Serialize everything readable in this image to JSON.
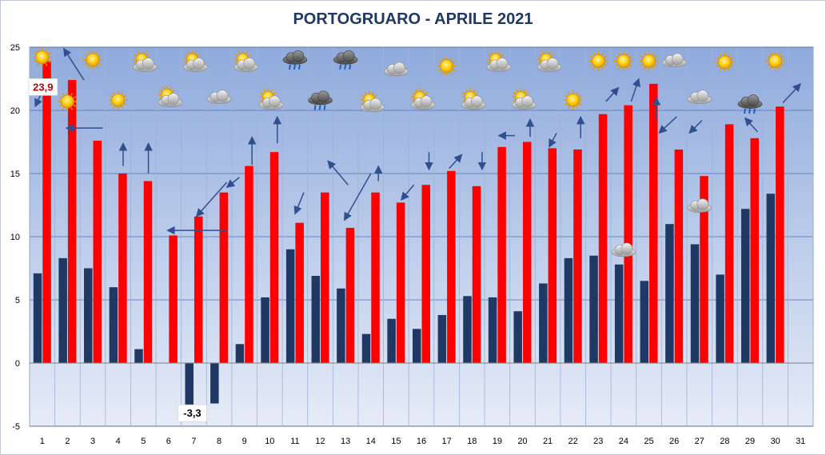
{
  "title": "PORTOGRUARO - APRILE 2021",
  "chart_data": {
    "type": "bar",
    "title": "PORTOGRUARO - APRILE 2021",
    "categories": [
      "1",
      "2",
      "3",
      "4",
      "5",
      "6",
      "7",
      "8",
      "9",
      "10",
      "11",
      "12",
      "13",
      "14",
      "15",
      "16",
      "17",
      "18",
      "19",
      "20",
      "21",
      "22",
      "23",
      "24",
      "25",
      "26",
      "27",
      "28",
      "29",
      "30",
      "31"
    ],
    "ylim": [
      -5,
      25
    ],
    "yticks": [
      25,
      20,
      15,
      10,
      5,
      0,
      -5
    ],
    "grid": true,
    "series": [
      {
        "color": "#1f3864",
        "values": [
          7.1,
          8.3,
          7.5,
          6.0,
          1.1,
          null,
          -3.3,
          -3.2,
          1.5,
          5.2,
          9.0,
          6.9,
          5.9,
          2.3,
          3.5,
          2.7,
          3.8,
          5.3,
          5.2,
          4.1,
          6.3,
          8.3,
          8.5,
          7.8,
          6.5,
          11.0,
          9.4,
          7.0,
          12.2,
          13.4,
          null
        ]
      },
      {
        "color": "#ff0000",
        "values": [
          23.9,
          22.4,
          17.6,
          15.0,
          14.4,
          10.1,
          11.6,
          13.5,
          15.6,
          16.7,
          11.1,
          13.5,
          10.7,
          13.5,
          12.7,
          14.1,
          15.2,
          14.0,
          17.1,
          17.5,
          17.0,
          16.9,
          19.7,
          20.4,
          22.1,
          16.9,
          14.8,
          18.9,
          17.8,
          20.3,
          null
        ]
      }
    ],
    "annotations": [
      {
        "day": "1",
        "series": 1,
        "text": "23,9",
        "color": "#c00000"
      },
      {
        "day": "7",
        "series": 0,
        "text": "-3,3",
        "color": "#000000"
      }
    ],
    "weather_icons": [
      {
        "day": "1",
        "icon": "sun",
        "y": 24.2
      },
      {
        "day": "2",
        "icon": "sun",
        "y": 20.7
      },
      {
        "day": "3",
        "icon": "sun",
        "y": 24.0
      },
      {
        "day": "4",
        "icon": "sun",
        "y": 20.8
      },
      {
        "day": "5",
        "icon": "sun-cloud",
        "y": 23.8
      },
      {
        "day": "6",
        "icon": "sun-cloud",
        "y": 21.0
      },
      {
        "day": "7",
        "icon": "sun-cloud",
        "y": 23.8
      },
      {
        "day": "8",
        "icon": "cloud",
        "y": 21.0
      },
      {
        "day": "9",
        "icon": "sun-cloud",
        "y": 23.8
      },
      {
        "day": "10",
        "icon": "sun-cloud",
        "y": 20.8
      },
      {
        "day": "11",
        "icon": "rain",
        "y": 24.0
      },
      {
        "day": "12",
        "icon": "rain",
        "y": 20.8
      },
      {
        "day": "13",
        "icon": "rain",
        "y": 24.0
      },
      {
        "day": "14",
        "icon": "sun-cloud",
        "y": 20.6
      },
      {
        "day": "15",
        "icon": "cloud",
        "y": 23.2
      },
      {
        "day": "16",
        "icon": "sun-cloud",
        "y": 20.8
      },
      {
        "day": "17",
        "icon": "sun",
        "y": 23.5
      },
      {
        "day": "18",
        "icon": "sun-cloud",
        "y": 20.8
      },
      {
        "day": "19",
        "icon": "sun-cloud",
        "y": 23.8
      },
      {
        "day": "20",
        "icon": "sun-cloud",
        "y": 20.8
      },
      {
        "day": "21",
        "icon": "sun-cloud",
        "y": 23.8
      },
      {
        "day": "22",
        "icon": "sun",
        "y": 20.8
      },
      {
        "day": "23",
        "icon": "sun",
        "y": 23.9
      },
      {
        "day": "24",
        "icon": "sun",
        "y": 23.9
      },
      {
        "day": "24",
        "icon": "cloud",
        "y": 8.9
      },
      {
        "day": "25",
        "icon": "sun",
        "y": 23.9
      },
      {
        "day": "26",
        "icon": "cloud",
        "y": 23.9
      },
      {
        "day": "27",
        "icon": "cloud",
        "y": 21.0
      },
      {
        "day": "27",
        "icon": "cloud",
        "y": 12.4
      },
      {
        "day": "28",
        "icon": "sun",
        "y": 23.8
      },
      {
        "day": "29",
        "icon": "rain",
        "y": 20.5
      },
      {
        "day": "30",
        "icon": "sun",
        "y": 23.9
      }
    ],
    "arrows": [
      {
        "from": [
          1.0,
          21.5
        ],
        "to": [
          0.72,
          20.3
        ]
      },
      {
        "from": [
          2.65,
          22.4
        ],
        "to": [
          1.85,
          24.9
        ]
      },
      {
        "from": [
          3.4,
          18.6
        ],
        "to": [
          1.95,
          18.6
        ]
      },
      {
        "from": [
          4.2,
          15.6
        ],
        "to": [
          4.2,
          17.4
        ]
      },
      {
        "from": [
          5.2,
          15.0
        ],
        "to": [
          5.2,
          17.4
        ]
      },
      {
        "from": [
          8.3,
          10.5
        ],
        "to": [
          5.95,
          10.5
        ]
      },
      {
        "from": [
          8.3,
          14.3
        ],
        "to": [
          7.1,
          11.6
        ]
      },
      {
        "from": [
          8.8,
          14.7
        ],
        "to": [
          8.3,
          13.9
        ]
      },
      {
        "from": [
          9.3,
          15.7
        ],
        "to": [
          9.3,
          17.9
        ]
      },
      {
        "from": [
          10.3,
          17.4
        ],
        "to": [
          10.3,
          19.5
        ]
      },
      {
        "from": [
          11.35,
          13.5
        ],
        "to": [
          11.0,
          11.8
        ]
      },
      {
        "from": [
          13.1,
          14.1
        ],
        "to": [
          12.3,
          16.0
        ]
      },
      {
        "from": [
          14.0,
          15.0
        ],
        "to": [
          12.95,
          11.3
        ]
      },
      {
        "from": [
          14.3,
          14.4
        ],
        "to": [
          14.3,
          15.6
        ]
      },
      {
        "from": [
          15.7,
          14.1
        ],
        "to": [
          15.2,
          12.9
        ]
      },
      {
        "from": [
          16.3,
          16.7
        ],
        "to": [
          16.3,
          15.3
        ]
      },
      {
        "from": [
          17.1,
          15.4
        ],
        "to": [
          17.6,
          16.5
        ]
      },
      {
        "from": [
          18.4,
          16.7
        ],
        "to": [
          18.4,
          15.3
        ]
      },
      {
        "from": [
          19.7,
          18.0
        ],
        "to": [
          19.05,
          18.0
        ]
      },
      {
        "from": [
          20.3,
          17.9
        ],
        "to": [
          20.3,
          19.3
        ]
      },
      {
        "from": [
          21.35,
          18.2
        ],
        "to": [
          21.05,
          17.1
        ]
      },
      {
        "from": [
          22.3,
          17.8
        ],
        "to": [
          22.3,
          19.5
        ]
      },
      {
        "from": [
          23.3,
          20.7
        ],
        "to": [
          23.8,
          21.8
        ]
      },
      {
        "from": [
          24.3,
          20.7
        ],
        "to": [
          24.6,
          22.5
        ]
      },
      {
        "from": [
          25.3,
          19.3
        ],
        "to": [
          25.3,
          21.0
        ]
      },
      {
        "from": [
          26.1,
          19.5
        ],
        "to": [
          25.4,
          18.2
        ]
      },
      {
        "from": [
          27.1,
          19.2
        ],
        "to": [
          26.6,
          18.2
        ]
      },
      {
        "from": [
          29.3,
          18.3
        ],
        "to": [
          28.8,
          19.4
        ]
      },
      {
        "from": [
          30.3,
          20.6
        ],
        "to": [
          31.0,
          22.1
        ]
      }
    ]
  }
}
